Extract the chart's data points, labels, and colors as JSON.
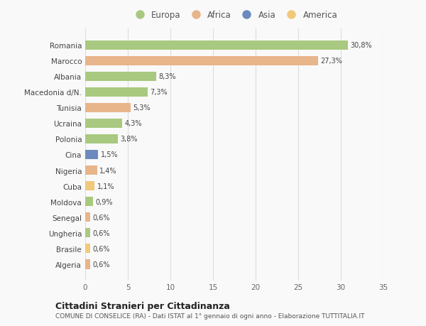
{
  "countries": [
    "Romania",
    "Marocco",
    "Albania",
    "Macedonia d/N.",
    "Tunisia",
    "Ucraina",
    "Polonia",
    "Cina",
    "Nigeria",
    "Cuba",
    "Moldova",
    "Senegal",
    "Ungheria",
    "Brasile",
    "Algeria"
  ],
  "values": [
    30.8,
    27.3,
    8.3,
    7.3,
    5.3,
    4.3,
    3.8,
    1.5,
    1.4,
    1.1,
    0.9,
    0.6,
    0.6,
    0.6,
    0.6
  ],
  "labels": [
    "30,8%",
    "27,3%",
    "8,3%",
    "7,3%",
    "5,3%",
    "4,3%",
    "3,8%",
    "1,5%",
    "1,4%",
    "1,1%",
    "0,9%",
    "0,6%",
    "0,6%",
    "0,6%",
    "0,6%"
  ],
  "colors": [
    "#a8c97f",
    "#e8b48a",
    "#a8c97f",
    "#a8c97f",
    "#e8b48a",
    "#a8c97f",
    "#a8c97f",
    "#6b8bbf",
    "#e8b48a",
    "#f0c97a",
    "#a8c97f",
    "#e8b48a",
    "#a8c97f",
    "#f0c97a",
    "#e8b48a"
  ],
  "legend_labels": [
    "Europa",
    "Africa",
    "Asia",
    "America"
  ],
  "legend_colors": [
    "#a8c97f",
    "#e8b48a",
    "#6b8bbf",
    "#f0c97a"
  ],
  "title": "Cittadini Stranieri per Cittadinanza",
  "subtitle": "COMUNE DI CONSELICE (RA) - Dati ISTAT al 1° gennaio di ogni anno - Elaborazione TUTTITALIA.IT",
  "xlim": [
    0,
    35
  ],
  "xticks": [
    0,
    5,
    10,
    15,
    20,
    25,
    30,
    35
  ],
  "background_color": "#f9f9f9",
  "grid_color": "#dddddd"
}
